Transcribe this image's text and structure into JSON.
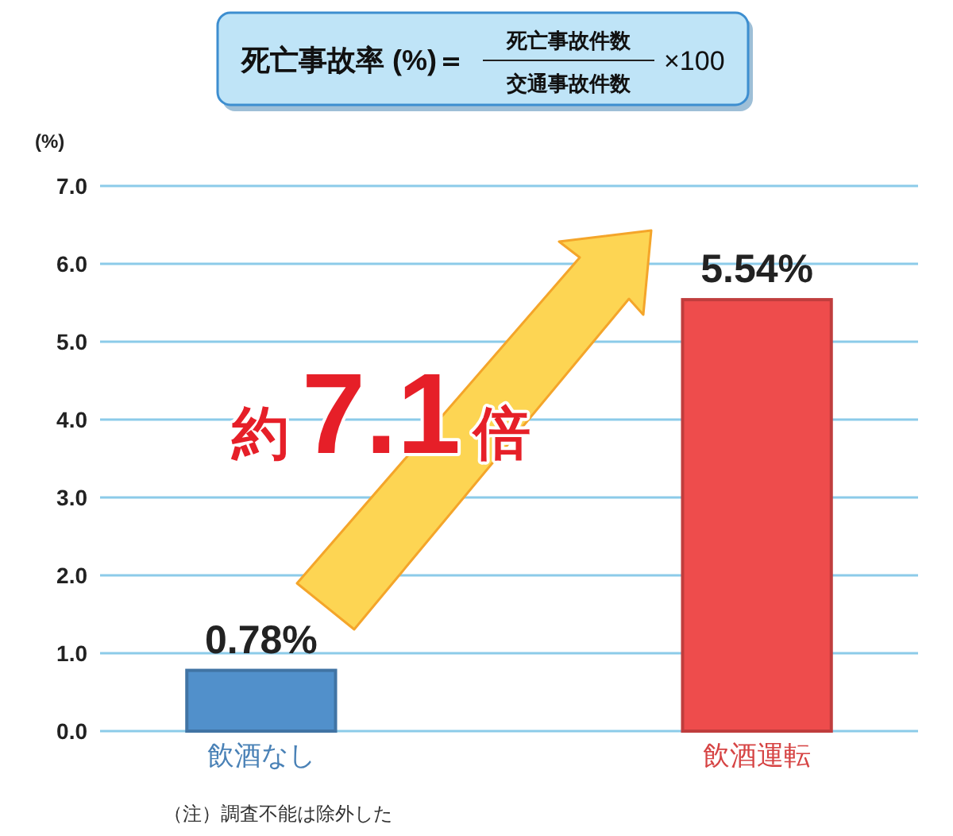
{
  "chart_data": {
    "type": "bar",
    "title": "死亡事故率 (%)＝",
    "ylabel": "(%)",
    "categories": [
      "飲酒なし",
      "飲酒運転"
    ],
    "values": [
      0.78,
      5.54
    ],
    "colors": [
      "#5190cb",
      "#ee4c4c"
    ],
    "value_labels": [
      "0.78%",
      "5.54%"
    ],
    "ylim": [
      0,
      7
    ],
    "yticks": [
      {
        "value": 0,
        "label": "0.0"
      },
      {
        "value": 1,
        "label": "1.0"
      },
      {
        "value": 2,
        "label": "2.0"
      },
      {
        "value": 3,
        "label": "3.0"
      },
      {
        "value": 4,
        "label": "4.0"
      },
      {
        "value": 5,
        "label": "5.0"
      },
      {
        "value": 6,
        "label": "6.0"
      },
      {
        "value": 7,
        "label": "7.0"
      }
    ],
    "grid": "y",
    "annotations": [
      "死亡事故件数",
      "交通事故件数",
      "×100",
      "約7.1倍",
      "（注）調査不能は除外した"
    ]
  }
}
